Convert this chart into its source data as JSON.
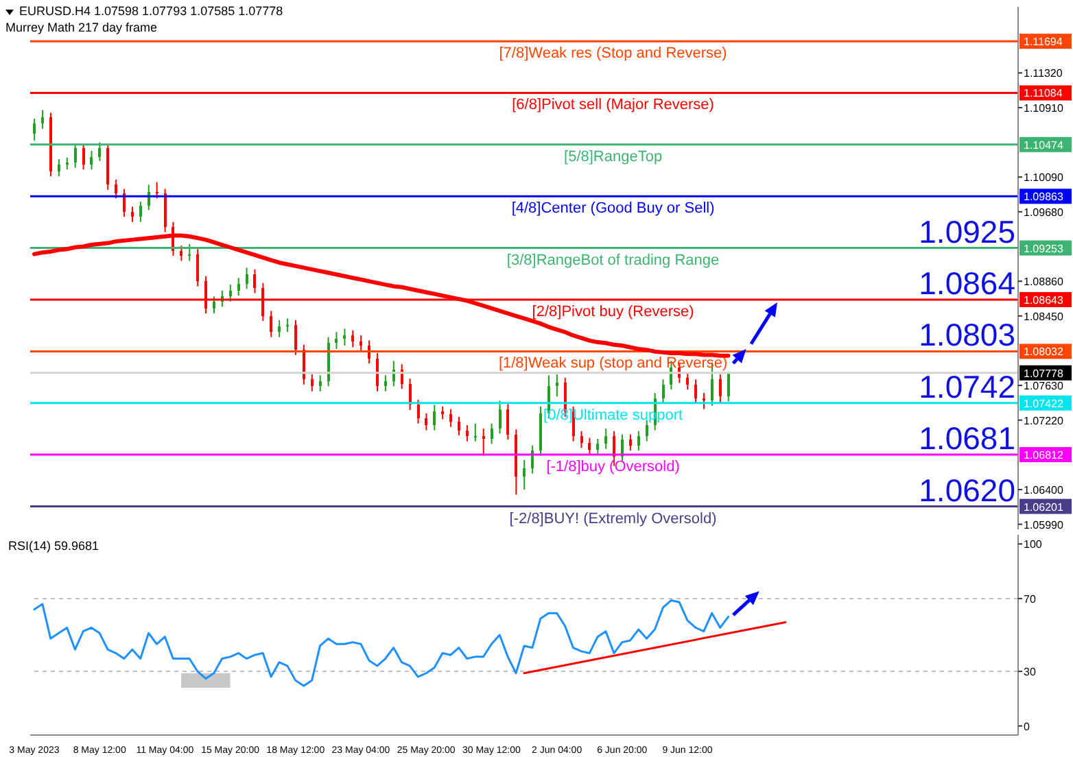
{
  "chart_data": [
    {
      "type": "candlestick",
      "title": "EURUSD.H4  1.07598 1.07793 1.07585 1.07778",
      "subtitle": "Murrey Math 217 day frame",
      "tick_labels": "y",
      "colors": [
        "#22a022",
        "#22a022",
        "#ff0000",
        "#22a022",
        "#22a022",
        "#22a022",
        "#ff0000",
        "#22a022",
        "#22a022",
        "#ff0000",
        "#ff0000",
        "#ff0000",
        "#ff0000",
        "#22a022",
        "#22a022",
        "#ff0000",
        "#ff0000",
        "#ff0000",
        "#ff0000",
        "#22a022",
        "#ff0000",
        "#ff0000",
        "#22a022",
        "#22a022",
        "#22a022",
        "#22a022",
        "#22a022",
        "#ff0000",
        "#ff0000",
        "#ff0000",
        "#22a022",
        "#22a022",
        "#ff0000",
        "#ff0000",
        "#ff0000",
        "#22a022",
        "#22a022",
        "#22a022",
        "#22a022",
        "#ff0000",
        "#ff0000",
        "#ff0000",
        "#ff0000",
        "#22a022",
        "#22a022",
        "#ff0000",
        "#ff0000",
        "#ff0000",
        "#ff0000",
        "#22a022",
        "#ff0000",
        "#ff0000",
        "#ff0000",
        "#ff0000",
        "#22a022",
        "#ff0000",
        "#22a022",
        "#22a022",
        "#ff0000",
        "#ff0000",
        "#22a022",
        "#22a022",
        "#22a022",
        "#22a022",
        "#22a022",
        "#ff0000",
        "#ff0000",
        "#ff0000",
        "#ff0000",
        "#22a022",
        "#22a022",
        "#ff0000",
        "#22a022",
        "#ff0000",
        "#22a022",
        "#22a022",
        "#22a022",
        "#22a022",
        "#22a022",
        "#ff0000",
        "#ff0000",
        "#ff0000",
        "#ff0000",
        "#22a022",
        "#ff0000",
        "#22a022",
        null,
        null,
        null,
        null,
        null,
        null,
        null,
        null,
        null,
        null,
        null,
        null,
        null,
        null,
        null,
        null,
        null,
        null,
        null,
        null,
        null,
        null,
        null,
        null,
        null,
        null,
        null,
        null,
        null,
        null,
        null,
        null,
        null,
        null,
        null
      ],
      "ohlc": [
        [
          1.106,
          1.1078,
          1.1052,
          1.1072
        ],
        [
          1.1072,
          1.1088,
          1.1066,
          1.108
        ],
        [
          1.108,
          1.1085,
          1.101,
          1.1016
        ],
        [
          1.1016,
          1.103,
          1.101,
          1.1024
        ],
        [
          1.1024,
          1.1032,
          1.1018,
          1.1026
        ],
        [
          1.1026,
          1.1048,
          1.102,
          1.1043
        ],
        [
          1.1043,
          1.1048,
          1.1018,
          1.1024
        ],
        [
          1.1024,
          1.104,
          1.1018,
          1.1033
        ],
        [
          1.1033,
          1.105,
          1.1028,
          1.1043
        ],
        [
          1.1043,
          1.1048,
          1.0994,
          1.1
        ],
        [
          1.1,
          1.1006,
          1.0984,
          1.099
        ],
        [
          1.099,
          1.0995,
          1.0962,
          1.0968
        ],
        [
          1.0968,
          1.0974,
          1.0956,
          1.0962
        ],
        [
          1.0962,
          1.098,
          1.0956,
          1.0975
        ],
        [
          1.0975,
          1.1,
          1.097,
          1.0991
        ],
        [
          1.0991,
          1.1003,
          1.0984,
          1.099
        ],
        [
          1.099,
          1.0995,
          1.0944,
          1.095
        ],
        [
          1.095,
          1.0956,
          1.0916,
          1.0922
        ],
        [
          1.0922,
          1.0928,
          1.091,
          1.0916
        ],
        [
          1.0916,
          1.093,
          1.091,
          1.0918
        ],
        [
          1.0918,
          1.0924,
          1.088,
          1.0886
        ],
        [
          1.0886,
          1.0892,
          1.0848,
          1.0854
        ],
        [
          1.0854,
          1.0868,
          1.0848,
          1.0862
        ],
        [
          1.0862,
          1.0875,
          1.0856,
          1.0868
        ],
        [
          1.0868,
          1.0882,
          1.0862,
          1.0875
        ],
        [
          1.0875,
          1.089,
          1.0869,
          1.0883
        ],
        [
          1.0883,
          1.0902,
          1.0877,
          1.0894
        ],
        [
          1.0894,
          1.09,
          1.0872,
          1.0878
        ],
        [
          1.0878,
          1.0884,
          1.0839,
          1.0845
        ],
        [
          1.0845,
          1.0851,
          1.082,
          1.0826
        ],
        [
          1.0826,
          1.084,
          1.082,
          1.0833
        ],
        [
          1.0833,
          1.0842,
          1.0826,
          1.0834
        ],
        [
          1.0834,
          1.084,
          1.0799,
          1.0805
        ],
        [
          1.0805,
          1.0811,
          1.0764,
          1.077
        ],
        [
          1.077,
          1.0776,
          1.0756,
          1.0762
        ],
        [
          1.0762,
          1.0775,
          1.0756,
          1.0768
        ],
        [
          1.0768,
          1.082,
          1.0762,
          1.0813
        ],
        [
          1.0813,
          1.0826,
          1.0806,
          1.0818
        ],
        [
          1.0818,
          1.083,
          1.081,
          1.0822
        ],
        [
          1.0822,
          1.0828,
          1.0808,
          1.0815
        ],
        [
          1.0815,
          1.0822,
          1.0804,
          1.081
        ],
        [
          1.081,
          1.0816,
          1.0789,
          1.0795
        ],
        [
          1.0795,
          1.0801,
          1.0756,
          1.0762
        ],
        [
          1.0762,
          1.0775,
          1.0756,
          1.0768
        ],
        [
          1.0768,
          1.0792,
          1.0762,
          1.0782
        ],
        [
          1.0782,
          1.0788,
          1.0759,
          1.0765
        ],
        [
          1.0765,
          1.0771,
          1.0734,
          1.074
        ],
        [
          1.074,
          1.0746,
          1.0718,
          1.0724
        ],
        [
          1.0724,
          1.073,
          1.071,
          1.0716
        ],
        [
          1.0716,
          1.074,
          1.071,
          1.0732
        ],
        [
          1.0732,
          1.0738,
          1.0723,
          1.0729
        ],
        [
          1.0729,
          1.0735,
          1.0714,
          1.072
        ],
        [
          1.072,
          1.0726,
          1.0704,
          1.071
        ],
        [
          1.071,
          1.0716,
          1.0697,
          1.0703
        ],
        [
          1.0703,
          1.0718,
          1.0697,
          1.0703
        ],
        [
          1.0703,
          1.0712,
          1.068,
          1.07
        ],
        [
          1.07,
          1.0718,
          1.0694,
          1.0712
        ],
        [
          1.0712,
          1.0745,
          1.0706,
          1.0735
        ],
        [
          1.0735,
          1.0741,
          1.0699,
          1.0705
        ],
        [
          1.0705,
          1.0711,
          1.0634,
          1.0655
        ],
        [
          1.0655,
          1.0675,
          1.064,
          1.0665
        ],
        [
          1.0665,
          1.0692,
          1.0659,
          1.0686
        ],
        [
          1.0686,
          1.0738,
          1.068,
          1.073
        ],
        [
          1.073,
          1.0775,
          1.0724,
          1.0762
        ],
        [
          1.0762,
          1.0776,
          1.075,
          1.0766
        ],
        [
          1.0766,
          1.0772,
          1.0726,
          1.0732
        ],
        [
          1.0732,
          1.0738,
          1.0697,
          1.0703
        ],
        [
          1.0703,
          1.0709,
          1.0689,
          1.0695
        ],
        [
          1.0695,
          1.0701,
          1.0681,
          1.0687
        ],
        [
          1.0687,
          1.07,
          1.0681,
          1.0694
        ],
        [
          1.0694,
          1.0712,
          1.0688,
          1.0703
        ],
        [
          1.0703,
          1.0709,
          1.0668,
          1.0679
        ],
        [
          1.0679,
          1.0705,
          1.0673,
          1.0699
        ],
        [
          1.0699,
          1.0705,
          1.0686,
          1.0692
        ],
        [
          1.0692,
          1.0709,
          1.0686,
          1.0703
        ],
        [
          1.0703,
          1.0722,
          1.0697,
          1.0716
        ],
        [
          1.0716,
          1.0754,
          1.071,
          1.0748
        ],
        [
          1.0748,
          1.077,
          1.0742,
          1.0764
        ],
        [
          1.0764,
          1.0792,
          1.0758,
          1.0784
        ],
        [
          1.0784,
          1.079,
          1.0766,
          1.0772
        ],
        [
          1.0772,
          1.0778,
          1.0758,
          1.0764
        ],
        [
          1.0764,
          1.077,
          1.0742,
          1.0748
        ],
        [
          1.0748,
          1.0754,
          1.0735,
          1.0745
        ],
        [
          1.0745,
          1.079,
          1.0739,
          1.077
        ],
        [
          1.077,
          1.0776,
          1.0742,
          1.075
        ],
        [
          1.075,
          1.0779,
          1.0744,
          1.0778
        ],
        null,
        null,
        null,
        null,
        null,
        null,
        null,
        null,
        null,
        null,
        null,
        null,
        null,
        null,
        null,
        null,
        null,
        null,
        null,
        null,
        null,
        null,
        null,
        null,
        null,
        null,
        null,
        null,
        null,
        null,
        null,
        null,
        null,
        null,
        null
      ],
      "series": [
        {
          "type": "line",
          "color": "#ff0000",
          "values": [
            1.0918,
            1.092,
            1.0921,
            1.0923,
            1.0924,
            1.0926,
            1.0927,
            1.0929,
            1.093,
            1.0931,
            1.0933,
            1.0934,
            1.0935,
            1.0936,
            1.0937,
            1.0938,
            1.0939,
            1.094,
            1.094,
            1.0939,
            1.0937,
            1.0935,
            1.0932,
            1.0929,
            1.0926,
            1.0923,
            1.092,
            1.0917,
            1.0914,
            1.0911,
            1.0908,
            1.0906,
            1.0904,
            1.0902,
            1.09,
            1.0898,
            1.0896,
            1.0894,
            1.0892,
            1.089,
            1.0888,
            1.0886,
            1.0884,
            1.0882,
            1.088,
            1.0879,
            1.0877,
            1.0875,
            1.0873,
            1.0871,
            1.0869,
            1.0867,
            1.0865,
            1.0863,
            1.086,
            1.0857,
            1.0854,
            1.0851,
            1.0848,
            1.0845,
            1.0842,
            1.0839,
            1.0836,
            1.0832,
            1.0829,
            1.0826,
            1.0822,
            1.0819,
            1.0816,
            1.0814,
            1.0813,
            1.0811,
            1.081,
            1.0808,
            1.0806,
            1.0805,
            1.0803,
            1.0802,
            1.0801,
            1.0801,
            1.08,
            1.08,
            1.0799,
            1.0799,
            1.0798,
            1.0798,
            null,
            null,
            null,
            null,
            null,
            null,
            null,
            null,
            null,
            null,
            null,
            null,
            null,
            null,
            null,
            null,
            null,
            null,
            null,
            null,
            null,
            null,
            null,
            null,
            null,
            null,
            null,
            null,
            null,
            null,
            null,
            null,
            null,
            null,
            null
          ]
        }
      ],
      "ylim": [
        1.0593,
        1.121
      ],
      "yticks": [
        1.11694,
        {
          "value": 1.1132,
          "label": "1.11320"
        },
        1.11084,
        {
          "value": 1.1091,
          "label": "1.10910"
        },
        1.10474,
        {
          "value": 1.1009,
          "label": "1.10090"
        },
        1.09863,
        {
          "value": 1.0968,
          "label": "1.09680"
        },
        1.09253,
        {
          "value": 1.0886,
          "label": "1.08860"
        },
        1.08643,
        {
          "value": 1.0845,
          "label": "1.08450"
        },
        1.08032,
        1.07778,
        {
          "value": 1.0763,
          "label": "1.07630"
        },
        1.07422,
        {
          "value": 1.0722,
          "label": "1.07220"
        },
        1.06812,
        {
          "value": 1.064,
          "label": "1.06400"
        },
        1.06201,
        {
          "value": 1.0599,
          "label": "1.05990"
        }
      ],
      "ref_lines": [
        {
          "axis": "y",
          "value": 1.11694,
          "label": "[7/8]Weak res (Stop and Reverse)",
          "color": "#ff4500"
        },
        {
          "axis": "y",
          "value": 1.11084,
          "label": "[6/8]Pivot sell (Major Reverse)",
          "color": "#ff0000"
        },
        {
          "axis": "y",
          "value": 1.10474,
          "label": "[5/8]RangeTop",
          "color": "#3cb371"
        },
        {
          "axis": "y",
          "value": 1.09863,
          "label": "[4/8]Center (Good Buy or Sell)",
          "color": "#0000ff"
        },
        {
          "axis": "y",
          "value": 1.09253,
          "label": "[3/8]RangeBot of trading Range",
          "color": "#3cb371"
        },
        {
          "axis": "y",
          "value": 1.08643,
          "label": "[2/8]Pivot buy (Reverse)",
          "color": "#ff0000"
        },
        {
          "axis": "y",
          "value": 1.08032,
          "label": "[1/8]Weak sup (stop and Reverse)",
          "color": "#ff4500"
        },
        {
          "axis": "y",
          "value": 1.07778,
          "color": "#d3d3d3"
        },
        {
          "axis": "y",
          "value": 1.07422,
          "label": "[0/8]Ultimate support",
          "color": "#00e5ee"
        },
        {
          "axis": "y",
          "value": 1.06812,
          "label": "[-1/8]buy (Oversold)",
          "color": "#ff00ff"
        },
        {
          "axis": "y",
          "value": 1.06201,
          "label": "[-2/8]BUY! (Extremly Oversold)",
          "color": "#483d8b"
        }
      ],
      "annotations": [
        {
          "text": "1.0925",
          "y": 1.09253
        },
        {
          "text": "1.0864",
          "y": 1.08643
        },
        {
          "text": "1.0803",
          "y": 1.08032
        },
        {
          "text": "1.0742",
          "y": 1.07422
        },
        {
          "text": "1.0681",
          "y": 1.06812
        },
        {
          "text": "1.0620",
          "y": 1.06201
        }
      ]
    },
    {
      "type": "line",
      "title": "RSI(14) 59.9681",
      "categories": [
        "3 May 2023",
        null,
        null,
        null,
        null,
        null,
        null,
        null,
        "8 May 12:00",
        null,
        null,
        null,
        null,
        null,
        null,
        null,
        "11 May 04:00",
        null,
        null,
        null,
        null,
        null,
        null,
        null,
        "15 May 20:00",
        null,
        null,
        null,
        null,
        null,
        null,
        null,
        "18 May 12:00",
        null,
        null,
        null,
        null,
        null,
        null,
        null,
        "23 May 04:00",
        null,
        null,
        null,
        null,
        null,
        null,
        null,
        "25 May 20:00",
        null,
        null,
        null,
        null,
        null,
        null,
        null,
        "30 May 12:00",
        null,
        null,
        null,
        null,
        null,
        null,
        null,
        "2 Jun 04:00",
        null,
        null,
        null,
        null,
        null,
        null,
        null,
        "6 Jun 20:00",
        null,
        null,
        null,
        null,
        null,
        null,
        null,
        "9 Jun 12:00",
        null,
        null,
        null,
        null,
        null,
        null,
        null,
        null,
        null,
        null,
        null,
        null,
        null,
        null,
        null,
        null,
        null,
        null,
        null,
        null,
        null,
        null,
        null,
        null,
        null,
        null,
        null,
        null,
        null,
        null,
        null,
        null,
        null,
        null,
        null,
        null,
        null,
        null,
        null,
        null
      ],
      "series": [
        {
          "color": "#1e90ff",
          "values": [
            64,
            67,
            48,
            51,
            54,
            42,
            52,
            54,
            51,
            42,
            40,
            37,
            42,
            37,
            51,
            45,
            49,
            37,
            37,
            37,
            30,
            26,
            29,
            37,
            38,
            40,
            37,
            39,
            40,
            27,
            35,
            33,
            25,
            22,
            25,
            44,
            48,
            45,
            45,
            46,
            45,
            36,
            33,
            37,
            43,
            35,
            33,
            27,
            29,
            32,
            40,
            39,
            43,
            37,
            38,
            38,
            45,
            50,
            38,
            29,
            44,
            43,
            59,
            62,
            62,
            55,
            43,
            41,
            40,
            49,
            52,
            40,
            46,
            47,
            53,
            48,
            53,
            65,
            69,
            68,
            58,
            54,
            52,
            62,
            54,
            59.9681,
            null,
            null,
            null,
            null,
            null,
            null,
            null,
            null,
            null,
            null,
            null,
            null,
            null,
            null,
            null,
            null,
            null,
            null,
            null,
            null,
            null,
            null,
            null,
            null,
            null,
            null,
            null,
            null,
            null,
            null,
            null,
            null,
            null,
            null,
            null
          ]
        },
        {
          "type": "line",
          "color": "#ff0000",
          "values": [
            null,
            null,
            null,
            null,
            null,
            null,
            null,
            null,
            null,
            null,
            null,
            null,
            null,
            null,
            null,
            null,
            null,
            null,
            null,
            null,
            null,
            null,
            null,
            null,
            null,
            null,
            null,
            null,
            null,
            null,
            null,
            null,
            null,
            null,
            null,
            null,
            null,
            null,
            null,
            null,
            null,
            null,
            null,
            null,
            null,
            null,
            null,
            null,
            null,
            null,
            null,
            null,
            null,
            null,
            null,
            null,
            null,
            null,
            null,
            null,
            29,
            null,
            null,
            null,
            null,
            null,
            null,
            null,
            null,
            null,
            null,
            null,
            null,
            null,
            null,
            null,
            null,
            null,
            null,
            null,
            null,
            null,
            null,
            null,
            null,
            null,
            null,
            null,
            null,
            null,
            null,
            null,
            57,
            null,
            null,
            null,
            null,
            null,
            null,
            null,
            null,
            null,
            null,
            null,
            null,
            null,
            null,
            null,
            null,
            null,
            null,
            null,
            null,
            null,
            null,
            null,
            null,
            null,
            null,
            null,
            null
          ]
        }
      ],
      "ylim": [
        -5,
        105
      ],
      "yticks": [
        0,
        30,
        70,
        100
      ],
      "ref_lines": [
        {
          "axis": "y",
          "value": 70,
          "color": "#c0c0c0",
          "line_style": "dashed"
        },
        {
          "axis": "y",
          "value": 30,
          "color": "#c0c0c0",
          "line_style": "dashed"
        }
      ]
    }
  ]
}
